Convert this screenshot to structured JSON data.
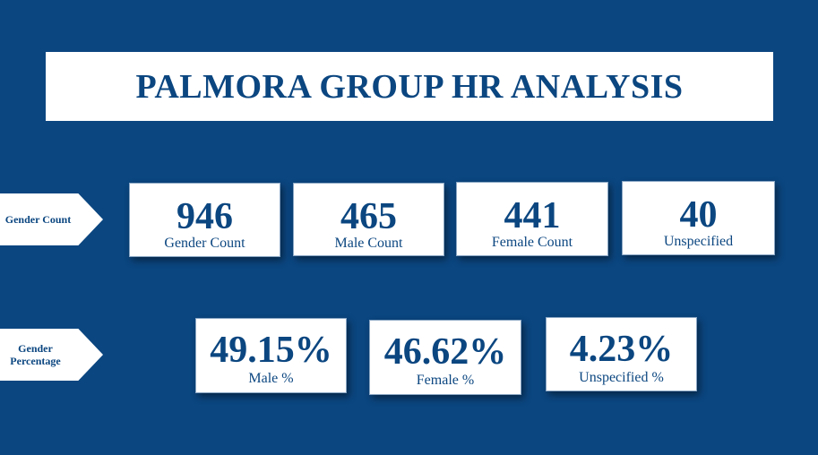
{
  "title": "PALMORA GROUP HR ANALYSIS",
  "tags": {
    "gender_count": "Gender Count",
    "gender_percentage_line1": "Gender",
    "gender_percentage_line2": "Percentage"
  },
  "count_cards": [
    {
      "value": "946",
      "label": "Gender Count"
    },
    {
      "value": "465",
      "label": "Male Count"
    },
    {
      "value": "441",
      "label": "Female Count"
    },
    {
      "value": "40",
      "label": "Unspecified"
    }
  ],
  "percent_cards": [
    {
      "value": "49.15%",
      "label": "Male %"
    },
    {
      "value": "46.62%",
      "label": "Female %"
    },
    {
      "value": "4.23%",
      "label": "Unspecified %"
    }
  ],
  "colors": {
    "background": "#0b4680",
    "card": "#ffffff",
    "text": "#0b4680"
  }
}
